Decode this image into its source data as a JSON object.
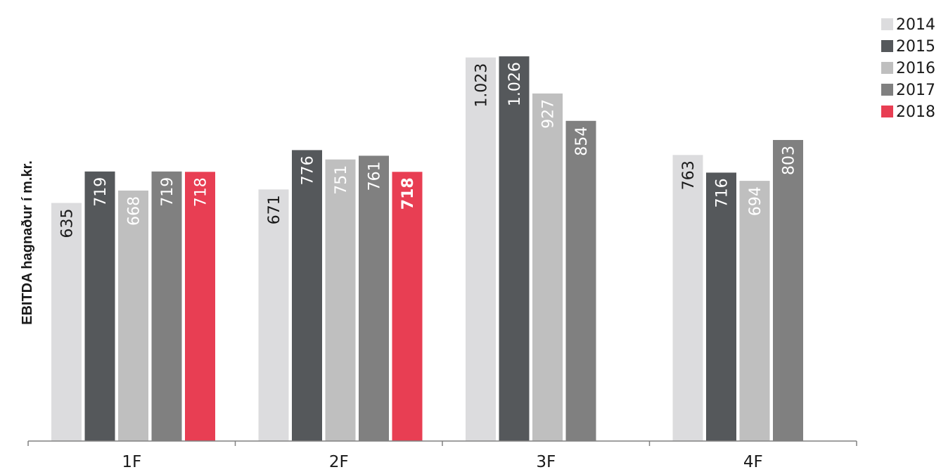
{
  "chart_data": {
    "type": "bar",
    "title": "",
    "xlabel": "",
    "ylabel": "EBITDA hagnaður í m.kr.",
    "categories": [
      "1F",
      "2F",
      "3F",
      "4F"
    ],
    "ylim": [
      0,
      1090
    ],
    "grid": false,
    "legend_position": "top-right",
    "series": [
      {
        "name": "2014",
        "color": "#dcdcde",
        "label_color": "#1a1a1a",
        "values": [
          635,
          671,
          1023,
          763
        ],
        "labels": [
          "635",
          "671",
          "1.023",
          "763"
        ]
      },
      {
        "name": "2015",
        "color": "#55585b",
        "label_color": "#ffffff",
        "values": [
          719,
          776,
          1026,
          716
        ],
        "labels": [
          "719",
          "776",
          "1.026",
          "716"
        ]
      },
      {
        "name": "2016",
        "color": "#bfbfbf",
        "label_color": "#ffffff",
        "values": [
          668,
          751,
          927,
          694
        ],
        "labels": [
          "668",
          "751",
          "927",
          "694"
        ]
      },
      {
        "name": "2017",
        "color": "#808080",
        "label_color": "#ffffff",
        "values": [
          719,
          761,
          854,
          803
        ],
        "labels": [
          "719",
          "761",
          "854",
          "803"
        ]
      },
      {
        "name": "2018",
        "color": "#e83e53",
        "label_color": "#ffffff",
        "values": [
          718,
          718,
          null,
          null
        ],
        "labels": [
          "718",
          "718",
          "",
          ""
        ],
        "bold_label_categories": [
          "2F"
        ]
      }
    ]
  }
}
